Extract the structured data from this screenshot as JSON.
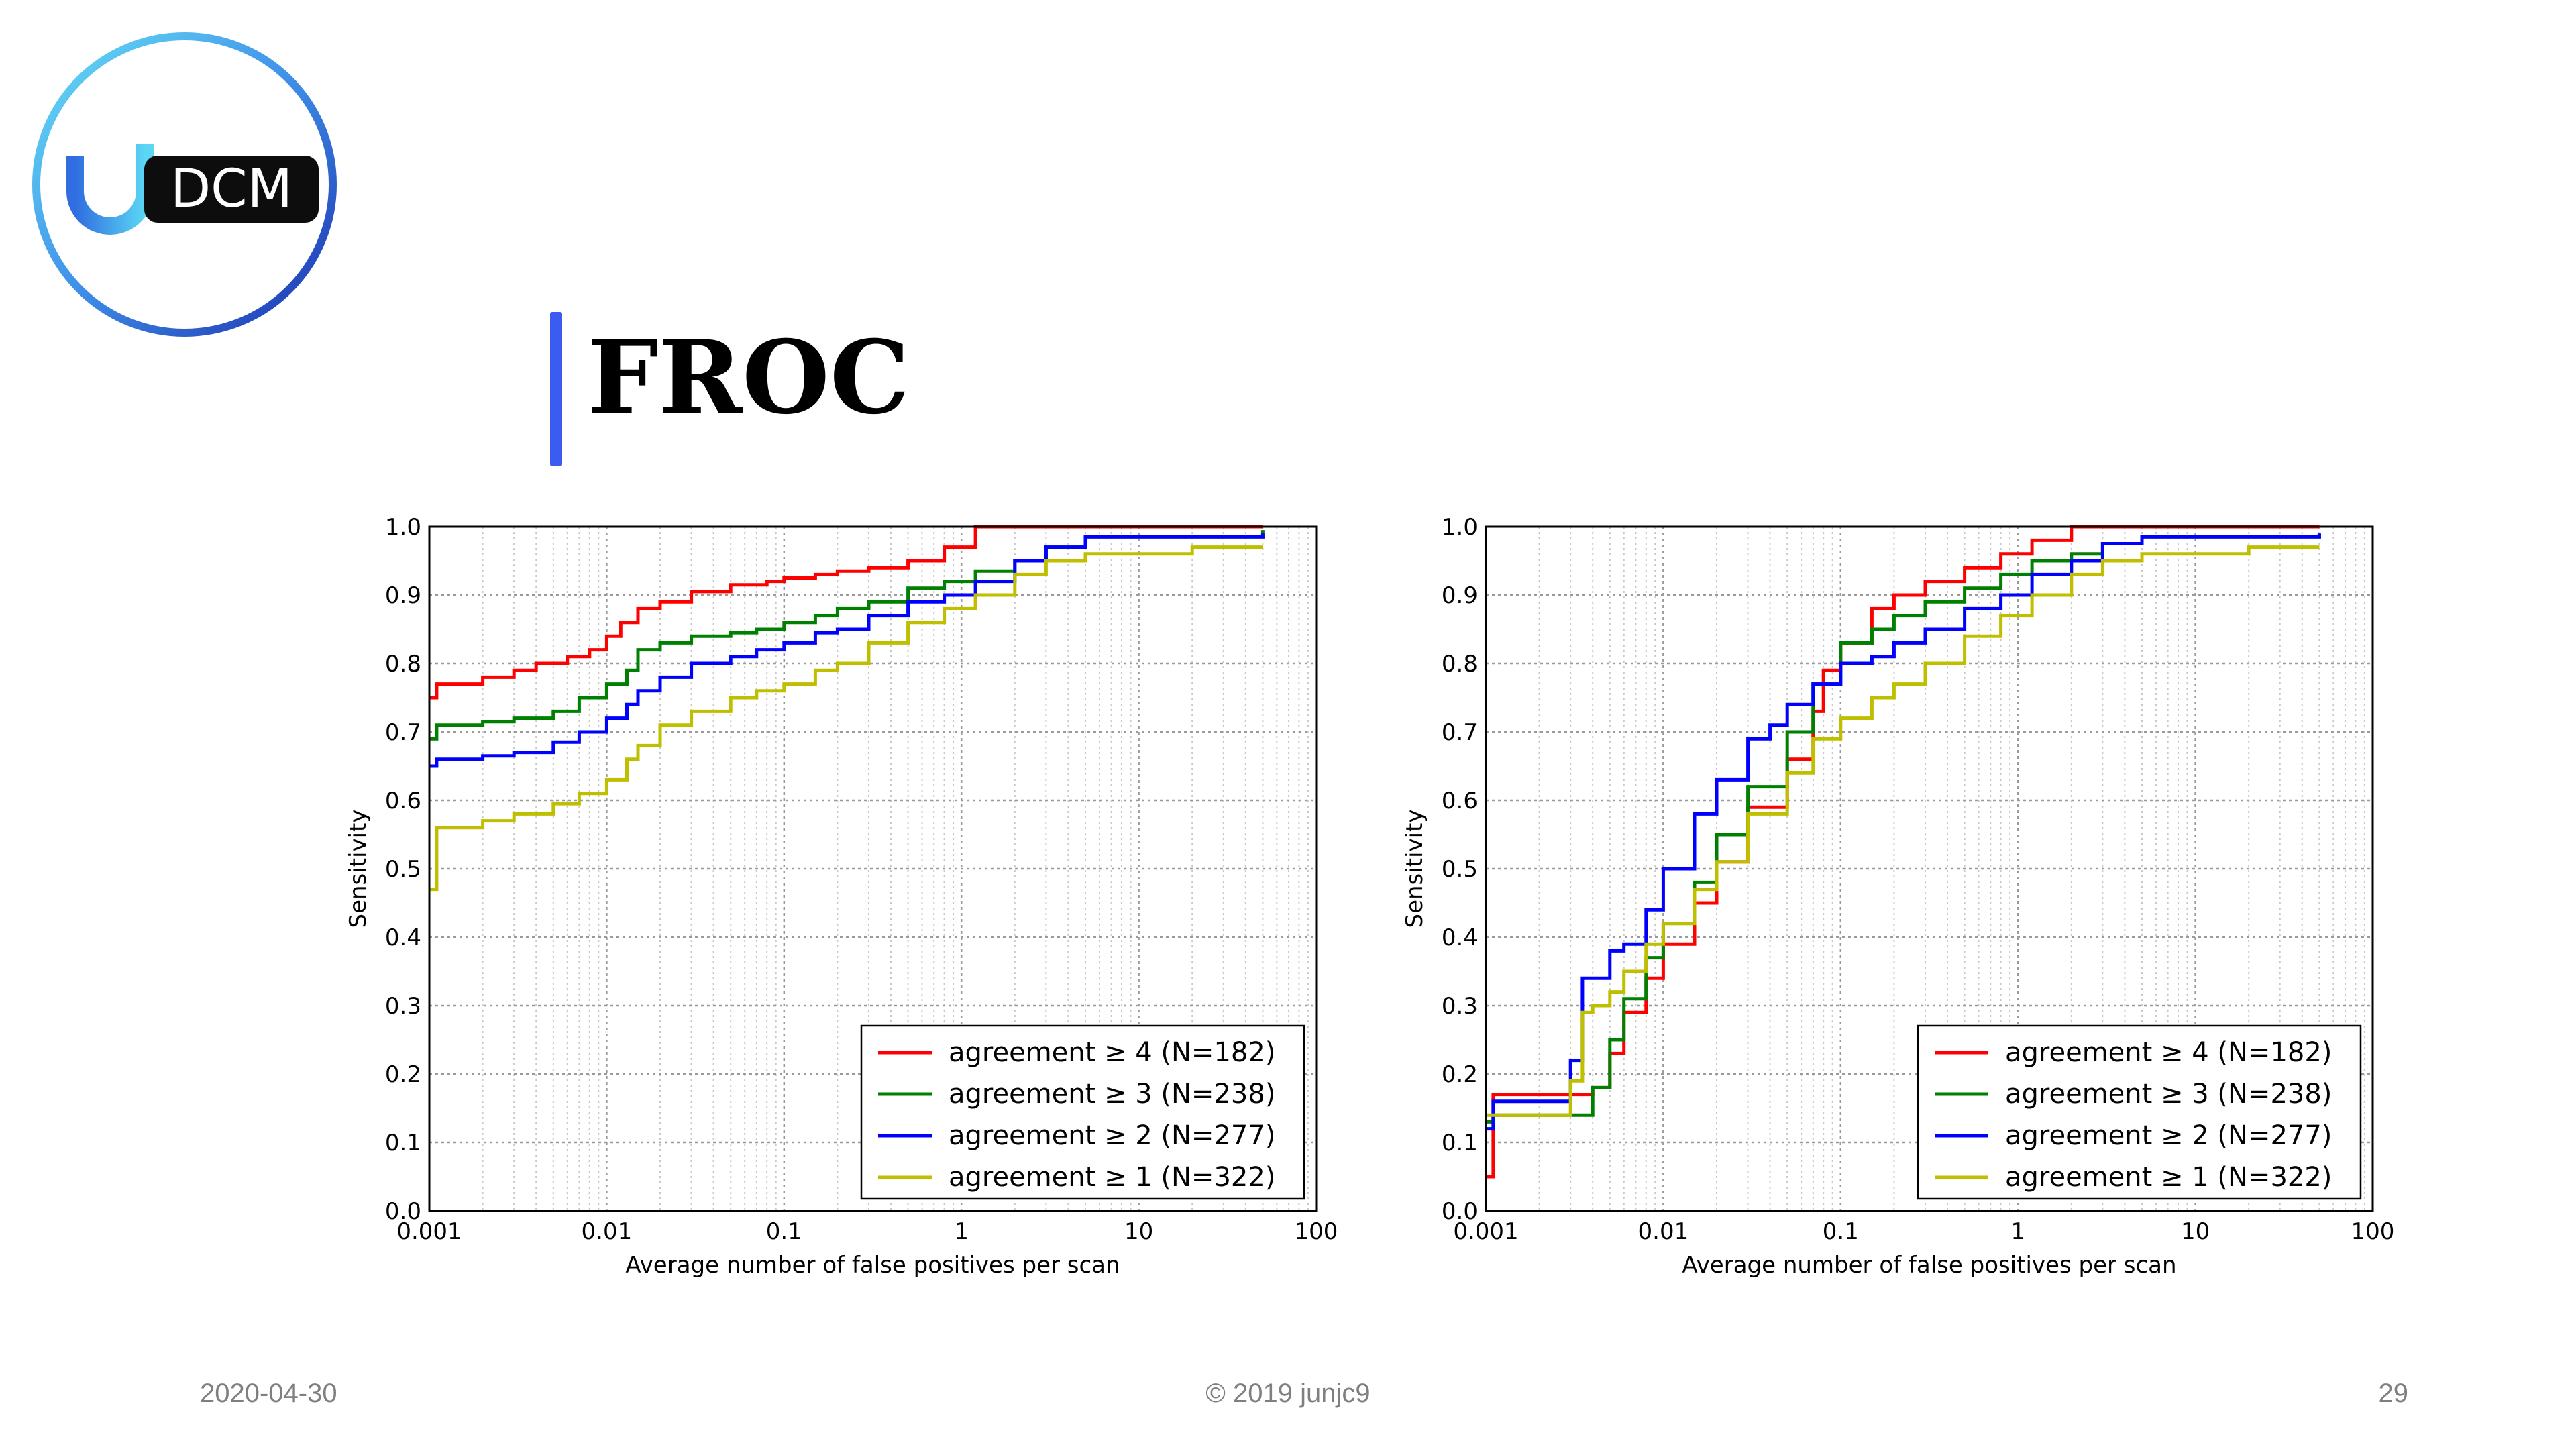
{
  "logo": {
    "text": "DCM",
    "mark": "U"
  },
  "slide": {
    "title": "FROC"
  },
  "footer": {
    "date": "2020-04-30",
    "copyright": "© 2019 junjc9",
    "page": "29"
  },
  "colors": {
    "accent": "#3b5cf0",
    "red": "#ff0000",
    "green": "#008000",
    "blue": "#0000ff",
    "yellow": "#bfbf00"
  },
  "chart_data": [
    {
      "type": "line",
      "xscale": "log",
      "xlabel": "Average number of false positives per scan",
      "ylabel": "Sensitivity",
      "xlim": [
        0.001,
        100
      ],
      "ylim": [
        0.0,
        1.0
      ],
      "xticks": [
        "0.001",
        "0.01",
        "0.1",
        "1",
        "10",
        "100"
      ],
      "yticks": [
        "0.0",
        "0.1",
        "0.2",
        "0.3",
        "0.4",
        "0.5",
        "0.6",
        "0.7",
        "0.8",
        "0.9",
        "1.0"
      ],
      "grid": true,
      "legend_position": "bottom-right",
      "series": [
        {
          "name": "agreement ≥ 4 (N=182)",
          "color": "#ff0000",
          "x": [
            0.001,
            0.0011,
            0.002,
            0.003,
            0.004,
            0.006,
            0.008,
            0.01,
            0.012,
            0.015,
            0.02,
            0.03,
            0.05,
            0.08,
            0.1,
            0.15,
            0.2,
            0.3,
            0.5,
            0.8,
            1.2,
            2,
            3,
            50
          ],
          "y": [
            0.75,
            0.77,
            0.78,
            0.79,
            0.8,
            0.81,
            0.82,
            0.84,
            0.86,
            0.88,
            0.89,
            0.905,
            0.915,
            0.92,
            0.925,
            0.93,
            0.935,
            0.94,
            0.95,
            0.97,
            1.0,
            1.0,
            1.0,
            1.0
          ]
        },
        {
          "name": "agreement ≥ 3 (N=238)",
          "color": "#008000",
          "x": [
            0.001,
            0.0011,
            0.002,
            0.003,
            0.005,
            0.007,
            0.01,
            0.013,
            0.015,
            0.02,
            0.03,
            0.05,
            0.07,
            0.1,
            0.15,
            0.2,
            0.3,
            0.5,
            0.8,
            1.2,
            2,
            3,
            5,
            50
          ],
          "y": [
            0.69,
            0.71,
            0.715,
            0.72,
            0.73,
            0.75,
            0.77,
            0.79,
            0.82,
            0.83,
            0.84,
            0.845,
            0.85,
            0.86,
            0.87,
            0.88,
            0.89,
            0.91,
            0.92,
            0.935,
            0.95,
            0.97,
            0.985,
            0.995
          ]
        },
        {
          "name": "agreement ≥ 2 (N=277)",
          "color": "#0000ff",
          "x": [
            0.001,
            0.0011,
            0.002,
            0.003,
            0.005,
            0.007,
            0.01,
            0.013,
            0.015,
            0.02,
            0.03,
            0.05,
            0.07,
            0.1,
            0.15,
            0.2,
            0.3,
            0.5,
            0.8,
            1.2,
            2,
            3,
            5,
            50
          ],
          "y": [
            0.65,
            0.66,
            0.665,
            0.67,
            0.685,
            0.7,
            0.72,
            0.74,
            0.76,
            0.78,
            0.8,
            0.81,
            0.82,
            0.83,
            0.845,
            0.85,
            0.87,
            0.89,
            0.9,
            0.92,
            0.95,
            0.97,
            0.985,
            0.99
          ]
        },
        {
          "name": "agreement ≥ 1 (N=322)",
          "color": "#bfbf00",
          "x": [
            0.001,
            0.0011,
            0.002,
            0.003,
            0.005,
            0.007,
            0.01,
            0.013,
            0.015,
            0.02,
            0.03,
            0.05,
            0.07,
            0.1,
            0.15,
            0.2,
            0.3,
            0.5,
            0.8,
            1.2,
            2,
            3,
            5,
            10,
            20,
            50
          ],
          "y": [
            0.47,
            0.56,
            0.57,
            0.58,
            0.595,
            0.61,
            0.63,
            0.66,
            0.68,
            0.71,
            0.73,
            0.75,
            0.76,
            0.77,
            0.79,
            0.8,
            0.83,
            0.86,
            0.88,
            0.9,
            0.93,
            0.95,
            0.96,
            0.96,
            0.97,
            0.97
          ]
        }
      ]
    },
    {
      "type": "line",
      "xscale": "log",
      "xlabel": "Average number of false positives per scan",
      "ylabel": "Sensitivity",
      "xlim": [
        0.001,
        100
      ],
      "ylim": [
        0.0,
        1.0
      ],
      "xticks": [
        "0.001",
        "0.01",
        "0.1",
        "1",
        "10",
        "100"
      ],
      "yticks": [
        "0.0",
        "0.1",
        "0.2",
        "0.3",
        "0.4",
        "0.5",
        "0.6",
        "0.7",
        "0.8",
        "0.9",
        "1.0"
      ],
      "grid": true,
      "legend_position": "bottom-right",
      "series": [
        {
          "name": "agreement ≥ 4 (N=182)",
          "color": "#ff0000",
          "x": [
            0.001,
            0.0011,
            0.002,
            0.004,
            0.005,
            0.006,
            0.008,
            0.01,
            0.015,
            0.02,
            0.03,
            0.05,
            0.07,
            0.08,
            0.1,
            0.15,
            0.2,
            0.3,
            0.5,
            0.8,
            1.2,
            2,
            3,
            50
          ],
          "y": [
            0.05,
            0.17,
            0.17,
            0.18,
            0.23,
            0.29,
            0.34,
            0.39,
            0.45,
            0.51,
            0.59,
            0.66,
            0.73,
            0.79,
            0.83,
            0.88,
            0.9,
            0.92,
            0.94,
            0.96,
            0.98,
            1.0,
            1.0,
            1.0
          ]
        },
        {
          "name": "agreement ≥ 3 (N=238)",
          "color": "#008000",
          "x": [
            0.001,
            0.0011,
            0.002,
            0.004,
            0.005,
            0.006,
            0.008,
            0.01,
            0.015,
            0.02,
            0.03,
            0.05,
            0.07,
            0.1,
            0.15,
            0.2,
            0.3,
            0.5,
            0.8,
            1.2,
            2,
            3,
            5,
            50
          ],
          "y": [
            0.13,
            0.14,
            0.14,
            0.18,
            0.25,
            0.31,
            0.37,
            0.42,
            0.48,
            0.55,
            0.62,
            0.7,
            0.77,
            0.83,
            0.85,
            0.87,
            0.89,
            0.91,
            0.93,
            0.95,
            0.96,
            0.975,
            0.985,
            0.99
          ]
        },
        {
          "name": "agreement ≥ 2 (N=277)",
          "color": "#0000ff",
          "x": [
            0.001,
            0.0011,
            0.002,
            0.003,
            0.0035,
            0.004,
            0.005,
            0.006,
            0.008,
            0.01,
            0.015,
            0.02,
            0.03,
            0.04,
            0.05,
            0.07,
            0.1,
            0.15,
            0.2,
            0.3,
            0.5,
            0.8,
            1.2,
            2,
            3,
            5,
            50
          ],
          "y": [
            0.12,
            0.16,
            0.16,
            0.22,
            0.34,
            0.34,
            0.38,
            0.39,
            0.44,
            0.5,
            0.58,
            0.63,
            0.69,
            0.71,
            0.74,
            0.77,
            0.8,
            0.81,
            0.83,
            0.85,
            0.88,
            0.9,
            0.93,
            0.95,
            0.975,
            0.985,
            0.99
          ]
        },
        {
          "name": "agreement ≥ 1 (N=322)",
          "color": "#bfbf00",
          "x": [
            0.001,
            0.0011,
            0.002,
            0.003,
            0.0035,
            0.004,
            0.005,
            0.006,
            0.008,
            0.01,
            0.015,
            0.02,
            0.03,
            0.05,
            0.07,
            0.1,
            0.15,
            0.2,
            0.3,
            0.5,
            0.8,
            1.2,
            2,
            3,
            5,
            10,
            20,
            50
          ],
          "y": [
            0.14,
            0.14,
            0.14,
            0.19,
            0.29,
            0.3,
            0.32,
            0.35,
            0.39,
            0.42,
            0.47,
            0.51,
            0.58,
            0.64,
            0.69,
            0.72,
            0.75,
            0.77,
            0.8,
            0.84,
            0.87,
            0.9,
            0.93,
            0.95,
            0.96,
            0.96,
            0.97,
            0.97
          ]
        }
      ]
    }
  ]
}
